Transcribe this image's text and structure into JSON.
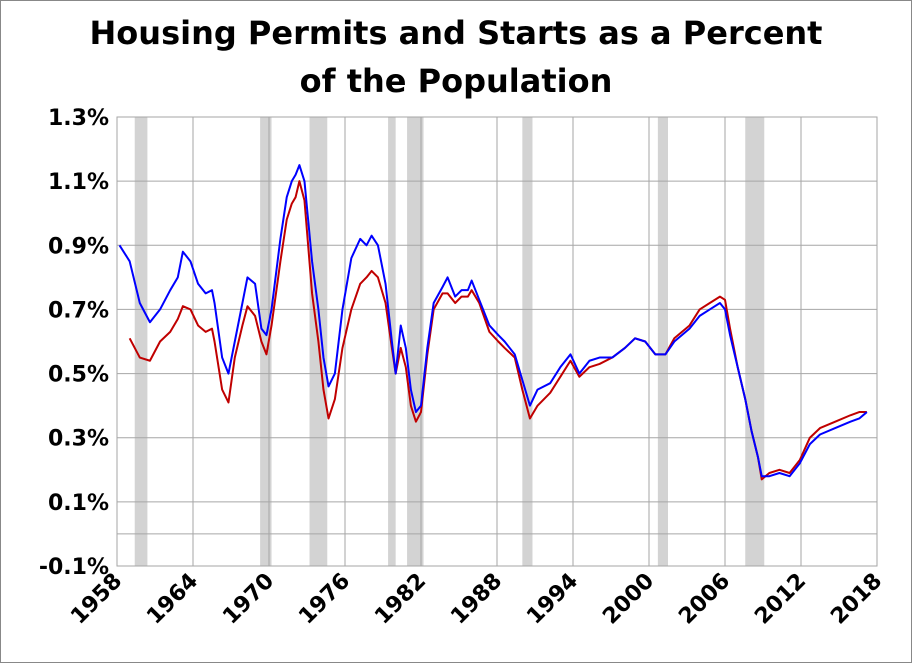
{
  "chart_data": {
    "type": "line",
    "title": [
      "Housing Permits and Starts as a Percent",
      "of the Population"
    ],
    "x": [
      1958.2,
      1959.0,
      1959.8,
      1960.6,
      1961.4,
      1962.2,
      1962.8,
      1963.2,
      1963.8,
      1964.4,
      1965.0,
      1965.5,
      1965.7,
      1966.3,
      1966.8,
      1967.3,
      1967.9,
      1968.3,
      1968.9,
      1969.4,
      1969.8,
      1970.2,
      1970.9,
      1971.4,
      1971.8,
      1972.1,
      1972.4,
      1972.8,
      1973.4,
      1973.9,
      1974.3,
      1974.7,
      1975.2,
      1975.8,
      1976.5,
      1977.2,
      1977.7,
      1978.1,
      1978.6,
      1979.2,
      1979.7,
      1980.0,
      1980.4,
      1980.8,
      1981.2,
      1981.6,
      1982.0,
      1982.5,
      1983.0,
      1983.7,
      1984.1,
      1984.7,
      1985.2,
      1985.7,
      1986.0,
      1986.6,
      1987.4,
      1988.1,
      1988.6,
      1989.4,
      1990.0,
      1990.6,
      1991.2,
      1992.2,
      1993.0,
      1993.8,
      1994.5,
      1995.3,
      1996.1,
      1997.1,
      1998.1,
      1998.9,
      1999.7,
      2000.5,
      2001.3,
      2002.0,
      2003.2,
      2004.0,
      2004.8,
      2005.6,
      2006.0,
      2006.4,
      2007.0,
      2007.6,
      2008.1,
      2008.6,
      2008.9,
      2009.5,
      2010.3,
      2011.1,
      2011.9,
      2012.7,
      2013.5,
      2014.7,
      2015.9,
      2016.6,
      2017.2
    ],
    "series": [
      {
        "color": "#0000ff",
        "values": [
          0.9,
          0.85,
          0.72,
          0.66,
          0.7,
          0.76,
          0.8,
          0.88,
          0.85,
          0.78,
          0.75,
          0.76,
          0.72,
          0.55,
          0.5,
          0.6,
          0.72,
          0.8,
          0.78,
          0.64,
          0.62,
          0.7,
          0.92,
          1.05,
          1.1,
          1.12,
          1.15,
          1.1,
          0.85,
          0.7,
          0.55,
          0.46,
          0.5,
          0.7,
          0.86,
          0.92,
          0.9,
          0.93,
          0.9,
          0.78,
          0.6,
          0.5,
          0.65,
          0.58,
          0.45,
          0.38,
          0.4,
          0.58,
          0.72,
          0.77,
          0.8,
          0.74,
          0.76,
          0.76,
          0.79,
          0.73,
          0.65,
          0.62,
          0.6,
          0.56,
          0.48,
          0.4,
          0.45,
          0.47,
          0.52,
          0.56,
          0.5,
          0.54,
          0.55,
          0.55,
          0.58,
          0.61,
          0.6,
          0.56,
          0.56,
          0.6,
          0.64,
          0.68,
          0.7,
          0.72,
          0.7,
          0.62,
          0.52,
          0.42,
          0.32,
          0.24,
          0.18,
          0.18,
          0.19,
          0.18,
          0.22,
          0.28,
          0.31,
          0.33,
          0.35,
          0.36,
          0.38
        ]
      },
      {
        "color": "#c00000",
        "values": [
          null,
          0.61,
          0.55,
          0.54,
          0.6,
          0.63,
          0.67,
          0.71,
          0.7,
          0.65,
          0.63,
          0.64,
          0.6,
          0.45,
          0.41,
          0.55,
          0.65,
          0.71,
          0.68,
          0.6,
          0.56,
          0.65,
          0.85,
          0.98,
          1.03,
          1.05,
          1.1,
          1.04,
          0.75,
          0.6,
          0.45,
          0.36,
          0.42,
          0.58,
          0.7,
          0.78,
          0.8,
          0.82,
          0.8,
          0.72,
          0.58,
          0.5,
          0.58,
          0.52,
          0.4,
          0.35,
          0.38,
          0.56,
          0.7,
          0.75,
          0.75,
          0.72,
          0.74,
          0.74,
          0.76,
          0.72,
          0.63,
          0.6,
          0.58,
          0.55,
          0.45,
          0.36,
          0.4,
          0.44,
          0.49,
          0.54,
          0.49,
          0.52,
          0.53,
          0.55,
          0.58,
          0.61,
          0.6,
          0.56,
          0.56,
          0.61,
          0.65,
          0.7,
          0.72,
          0.74,
          0.73,
          0.64,
          0.52,
          0.42,
          0.32,
          0.24,
          0.17,
          0.19,
          0.2,
          0.19,
          0.23,
          0.3,
          0.33,
          0.35,
          0.37,
          0.38,
          0.38
        ]
      }
    ],
    "recessions": [
      [
        1959.4,
        1960.4
      ],
      [
        1969.3,
        1970.2
      ],
      [
        1973.2,
        1974.6
      ],
      [
        1979.4,
        1980.0
      ],
      [
        1980.9,
        1982.2
      ],
      [
        1990.0,
        1990.8
      ],
      [
        2000.7,
        2001.5
      ],
      [
        2007.6,
        2009.1
      ]
    ],
    "recession_color": "#d3d3d3",
    "xlim": [
      1958,
      2018
    ],
    "xticks": [
      1958,
      1964,
      1970,
      1976,
      1982,
      1988,
      1994,
      2000,
      2006,
      2012,
      2018
    ],
    "ylim": [
      -0.1,
      1.3
    ],
    "yticks": [
      {
        "value": -0.1,
        "label": "-0.1%"
      },
      {
        "value": 0.1,
        "label": "0.1%"
      },
      {
        "value": 0.3,
        "label": "0.3%"
      },
      {
        "value": 0.5,
        "label": "0.5%"
      },
      {
        "value": 0.7,
        "label": "0.7%"
      },
      {
        "value": 0.9,
        "label": "0.9%"
      },
      {
        "value": 1.1,
        "label": "1.1%"
      },
      {
        "value": 1.3,
        "label": "1.3%"
      }
    ],
    "grid": true
  }
}
